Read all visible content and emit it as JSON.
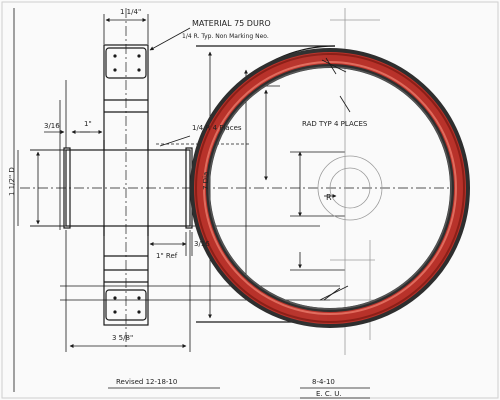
{
  "labels": {
    "material": "MATERIAL 75 DURO",
    "radius_note": "1/4 R. Typ. Non Marking Neo.",
    "top_dim": "1 1/4\"",
    "left_dim": "3/16",
    "one_inch": "1\"",
    "corner_r": "1/4 R  4 Places",
    "height_dim": "1 1/2\" D",
    "vertical_dia": "7 Dia",
    "ref_dim": "1\" Ref",
    "small_dim": "3/16",
    "bottom_dim": "3 5/8\"",
    "rad_typ": "RAD TYP 4 PLACES",
    "r_label": "R",
    "revised": "Revised 12-18-10",
    "date": "8-4-10",
    "initials": "E. C. U."
  },
  "colors": {
    "paper": "#fafafa",
    "ink": "#1a1a1a",
    "faint_ink": "#8a8a8a",
    "seal_dark": "#333333",
    "seal_red": "#b8322a",
    "seal_highlight": "#e06a5c"
  }
}
